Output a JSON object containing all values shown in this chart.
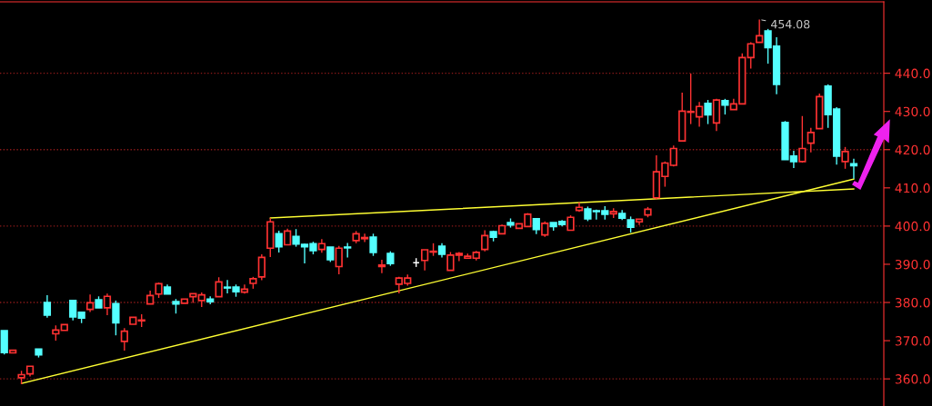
{
  "chart_data": {
    "type": "candlestick",
    "categories": [
      null,
      null,
      null,
      null,
      null,
      null,
      null,
      null,
      null,
      null,
      null,
      null,
      null,
      null,
      null,
      null,
      null,
      null,
      null,
      null,
      null,
      null,
      null,
      null,
      null,
      null,
      null,
      null,
      null,
      null,
      null,
      null,
      null,
      null,
      null,
      null,
      null,
      null,
      null,
      null,
      null,
      null,
      null,
      null,
      null,
      null,
      null,
      null,
      null,
      null,
      null,
      null,
      null,
      null,
      null,
      null,
      null,
      null,
      null,
      null,
      null,
      null,
      null,
      null,
      null,
      null,
      null,
      null,
      null,
      null,
      null,
      null,
      null,
      null,
      null,
      null,
      null,
      null,
      null,
      null,
      null,
      null,
      null,
      null,
      null,
      null,
      null,
      null,
      null,
      null,
      null,
      null,
      null,
      null,
      null,
      null,
      null,
      null,
      null,
      null,
      null,
      null,
      null
    ],
    "ohlc": [
      [
        372.6,
        372.6,
        366.4,
        366.9
      ],
      [
        366.8,
        367.5,
        366.8,
        367.5
      ],
      [
        360.3,
        362.1,
        358.6,
        361.1
      ],
      [
        361.3,
        363.3,
        360.6,
        363.3
      ],
      [
        367.8,
        367.8,
        365.6,
        366.3
      ],
      [
        380.0,
        381.9,
        376.0,
        376.7
      ],
      [
        371.8,
        374.0,
        370.0,
        372.8
      ],
      [
        372.7,
        374.2,
        372.7,
        374.2
      ],
      [
        380.5,
        380.5,
        375.3,
        376.2
      ],
      [
        377.4,
        377.4,
        374.6,
        375.9
      ],
      [
        378.2,
        382.1,
        377.5,
        379.9
      ],
      [
        380.7,
        381.6,
        378.6,
        378.6
      ],
      [
        378.6,
        382.3,
        376.7,
        381.6
      ],
      [
        379.7,
        380.5,
        371.4,
        374.7
      ],
      [
        369.8,
        373.3,
        367.4,
        372.5
      ],
      [
        374.3,
        376.1,
        374.3,
        376.1
      ],
      [
        375.2,
        376.9,
        373.6,
        375.4
      ],
      [
        379.6,
        383.1,
        379.6,
        381.8
      ],
      [
        382.2,
        385.2,
        381.2,
        384.9
      ],
      [
        384.0,
        384.7,
        382.2,
        382.2
      ],
      [
        380.2,
        380.9,
        377.1,
        379.6
      ],
      [
        379.8,
        380.9,
        379.8,
        380.9
      ],
      [
        381.5,
        382.3,
        379.9,
        382.3
      ],
      [
        380.5,
        382.6,
        378.8,
        382.0
      ],
      [
        380.9,
        381.6,
        379.5,
        380.2
      ],
      [
        381.5,
        386.6,
        381.5,
        385.4
      ],
      [
        384.0,
        385.9,
        382.4,
        383.8
      ],
      [
        384.0,
        384.7,
        381.5,
        382.8
      ],
      [
        382.7,
        384.7,
        382.3,
        383.5
      ],
      [
        385.0,
        386.7,
        383.6,
        386.2
      ],
      [
        386.7,
        392.6,
        385.8,
        391.8
      ],
      [
        394.2,
        402.1,
        391.9,
        401.1
      ],
      [
        398.0,
        398.8,
        393.1,
        394.6
      ],
      [
        395.1,
        399.3,
        395.1,
        398.7
      ],
      [
        397.3,
        399.2,
        394.6,
        395.3
      ],
      [
        395.2,
        395.4,
        390.2,
        394.6
      ],
      [
        395.4,
        395.9,
        392.6,
        393.6
      ],
      [
        393.9,
        396.6,
        393.0,
        395.4
      ],
      [
        394.5,
        394.5,
        390.6,
        391.2
      ],
      [
        389.4,
        394.8,
        387.4,
        394.2
      ],
      [
        394.5,
        395.6,
        391.8,
        394.3
      ],
      [
        396.2,
        398.7,
        395.5,
        398.0
      ],
      [
        396.7,
        398.0,
        395.8,
        397.0
      ],
      [
        397.1,
        398.0,
        392.2,
        393.1
      ],
      [
        389.4,
        391.2,
        387.7,
        389.8
      ],
      [
        392.8,
        393.4,
        389.6,
        390.2
      ],
      [
        384.8,
        386.7,
        382.4,
        386.4
      ],
      [
        385.0,
        387.3,
        384.4,
        386.4
      ],
      [
        390.4,
        391.6,
        389.3,
        390.4
      ],
      [
        391.0,
        393.8,
        388.4,
        393.8
      ],
      [
        393.2,
        395.5,
        392.2,
        393.4
      ],
      [
        394.7,
        395.5,
        391.8,
        392.6
      ],
      [
        388.4,
        393.2,
        388.4,
        392.4
      ],
      [
        392.4,
        393.2,
        390.8,
        392.8
      ],
      [
        391.6,
        392.8,
        391.6,
        392.1
      ],
      [
        391.6,
        393.5,
        391.0,
        393.1
      ],
      [
        393.9,
        398.9,
        393.4,
        397.5
      ],
      [
        398.5,
        398.8,
        396.0,
        397.1
      ],
      [
        398.0,
        400.4,
        398.0,
        400.1
      ],
      [
        400.9,
        402.0,
        399.6,
        400.3
      ],
      [
        399.4,
        400.6,
        399.4,
        400.6
      ],
      [
        399.9,
        403.4,
        399.9,
        403.1
      ],
      [
        401.9,
        401.9,
        397.9,
        399.1
      ],
      [
        397.7,
        401.2,
        397.2,
        400.7
      ],
      [
        400.9,
        400.9,
        398.8,
        399.9
      ],
      [
        401.2,
        401.6,
        399.9,
        400.4
      ],
      [
        398.9,
        402.8,
        398.9,
        402.3
      ],
      [
        404.1,
        406.2,
        403.7,
        404.9
      ],
      [
        404.5,
        405.1,
        401.3,
        401.9
      ],
      [
        404.0,
        404.3,
        401.7,
        403.8
      ],
      [
        404.0,
        405.2,
        401.7,
        403.1
      ],
      [
        403.2,
        404.7,
        402.1,
        403.8
      ],
      [
        403.3,
        404.2,
        401.6,
        402.1
      ],
      [
        401.6,
        402.5,
        398.3,
        399.7
      ],
      [
        401.1,
        401.8,
        400.3,
        401.8
      ],
      [
        402.9,
        405.0,
        402.3,
        404.4
      ],
      [
        407.4,
        418.5,
        407.0,
        414.2
      ],
      [
        413.0,
        416.9,
        410.3,
        416.5
      ],
      [
        415.9,
        421.1,
        415.6,
        420.3
      ],
      [
        422.3,
        434.9,
        422.1,
        430.1
      ],
      [
        429.8,
        439.9,
        426.7,
        430.0
      ],
      [
        428.6,
        432.5,
        426.0,
        431.3
      ],
      [
        432.1,
        433.0,
        426.7,
        429.1
      ],
      [
        427.0,
        433.3,
        424.9,
        433.0
      ],
      [
        432.8,
        433.3,
        429.2,
        431.7
      ],
      [
        430.5,
        433.3,
        430.5,
        432.0
      ],
      [
        432.0,
        445.2,
        432.0,
        444.1
      ],
      [
        444.1,
        448.1,
        441.2,
        447.7
      ],
      [
        448.1,
        454.08,
        448.1,
        449.8
      ],
      [
        451.1,
        451.6,
        442.5,
        446.7
      ],
      [
        447.1,
        449.4,
        434.5,
        437.1
      ],
      [
        427.1,
        427.5,
        417.4,
        417.4
      ],
      [
        418.3,
        419.7,
        415.2,
        416.9
      ],
      [
        416.9,
        428.8,
        416.6,
        420.3
      ],
      [
        421.7,
        425.7,
        419.3,
        424.5
      ],
      [
        425.5,
        434.7,
        425.5,
        433.9
      ],
      [
        436.6,
        437.1,
        425.7,
        429.2
      ],
      [
        430.6,
        431.1,
        416.1,
        418.3
      ],
      [
        416.9,
        420.7,
        415.0,
        419.5
      ],
      [
        416.3,
        417.6,
        412.4,
        415.8
      ],
      null,
      null,
      null
    ],
    "colors": [
      "#54ffff",
      "#ff3232",
      "#ff3232",
      "#ff3232",
      "#54ffff",
      "#54ffff",
      "#ff3232",
      "#ff3232",
      "#54ffff",
      "#54ffff",
      "#ff3232",
      "#54ffff",
      "#ff3232",
      "#54ffff",
      "#ff3232",
      "#ff3232",
      "#ff3232",
      "#ff3232",
      "#ff3232",
      "#54ffff",
      "#54ffff",
      "#ff3232",
      "#ff3232",
      "#ff3232",
      "#54ffff",
      "#ff3232",
      "#54ffff",
      "#54ffff",
      "#ff3232",
      "#ff3232",
      "#ff3232",
      "#ff3232",
      "#54ffff",
      "#ff3232",
      "#54ffff",
      "#54ffff",
      "#54ffff",
      "#ff3232",
      "#54ffff",
      "#ff3232",
      "#54ffff",
      "#ff3232",
      "#ff3232",
      "#54ffff",
      "#ff3232",
      "#54ffff",
      "#ff3232",
      "#ff3232",
      "#ffffff",
      "#ff3232",
      "#ff3232",
      "#54ffff",
      "#ff3232",
      "#ff3232",
      "#ff3232",
      "#ff3232",
      "#ff3232",
      "#54ffff",
      "#ff3232",
      "#54ffff",
      "#ff3232",
      "#ff3232",
      "#54ffff",
      "#ff3232",
      "#54ffff",
      "#54ffff",
      "#ff3232",
      "#ff3232",
      "#54ffff",
      "#54ffff",
      "#54ffff",
      "#ff3232",
      "#54ffff",
      "#54ffff",
      "#ff3232",
      "#ff3232",
      "#ff3232",
      "#ff3232",
      "#ff3232",
      "#ff3232",
      "#ff3232",
      "#ff3232",
      "#54ffff",
      "#ff3232",
      "#54ffff",
      "#ff3232",
      "#ff3232",
      "#ff3232",
      "#ff3232",
      "#54ffff",
      "#54ffff",
      "#54ffff",
      "#54ffff",
      "#ff3232",
      "#ff3232",
      "#ff3232",
      "#54ffff",
      "#54ffff",
      "#ff3232",
      "#54ffff",
      null,
      null,
      null
    ],
    "series": [
      {
        "type": "line",
        "color": "#ffff33",
        "values": [
          null,
          null,
          358.8,
          null,
          null,
          null,
          null,
          null,
          null,
          null,
          null,
          null,
          null,
          null,
          null,
          null,
          null,
          null,
          null,
          null,
          null,
          null,
          null,
          null,
          null,
          null,
          null,
          null,
          null,
          null,
          null,
          null,
          null,
          null,
          null,
          null,
          null,
          null,
          null,
          null,
          null,
          null,
          null,
          null,
          null,
          null,
          null,
          null,
          null,
          null,
          null,
          null,
          null,
          null,
          null,
          null,
          null,
          null,
          null,
          null,
          null,
          null,
          null,
          null,
          null,
          null,
          null,
          null,
          null,
          null,
          null,
          null,
          null,
          null,
          null,
          null,
          null,
          null,
          null,
          null,
          null,
          null,
          null,
          null,
          null,
          null,
          null,
          null,
          null,
          null,
          null,
          null,
          null,
          null,
          null,
          null,
          null,
          null,
          null,
          412.3,
          null,
          null,
          null
        ]
      },
      {
        "type": "line",
        "color": "#ffff33",
        "values": [
          null,
          null,
          null,
          null,
          null,
          null,
          null,
          null,
          null,
          null,
          null,
          null,
          null,
          null,
          null,
          null,
          null,
          null,
          null,
          null,
          null,
          null,
          null,
          null,
          null,
          null,
          null,
          null,
          null,
          null,
          null,
          402.1,
          null,
          null,
          null,
          null,
          null,
          null,
          null,
          null,
          null,
          null,
          null,
          null,
          null,
          null,
          null,
          null,
          null,
          null,
          null,
          null,
          null,
          null,
          null,
          null,
          null,
          null,
          null,
          null,
          null,
          null,
          null,
          null,
          null,
          null,
          null,
          null,
          null,
          null,
          null,
          null,
          null,
          null,
          null,
          null,
          null,
          null,
          null,
          null,
          null,
          null,
          null,
          null,
          null,
          null,
          null,
          null,
          null,
          null,
          null,
          null,
          null,
          null,
          null,
          null,
          null,
          null,
          null,
          409.7,
          null,
          null,
          null
        ]
      }
    ],
    "ylim": [
      352.9,
      458.7
    ],
    "yticks": [
      {
        "value": 360,
        "label": "360.0"
      },
      {
        "value": 370,
        "label": "370.0"
      },
      {
        "value": 380,
        "label": "380.0"
      },
      {
        "value": 390,
        "label": "390.0"
      },
      {
        "value": 400,
        "label": "400.0"
      },
      {
        "value": 410,
        "label": "410.0"
      },
      {
        "value": 420,
        "label": "420.0"
      },
      {
        "value": 430,
        "label": "430.0"
      },
      {
        "value": 440,
        "label": "440.0"
      }
    ],
    "ref_lines": [
      {
        "axis": "y",
        "value": 360,
        "color": "#8b1a1a",
        "line_style": "dotted"
      },
      {
        "axis": "y",
        "value": 380,
        "color": "#8b1a1a",
        "line_style": "dotted"
      },
      {
        "axis": "y",
        "value": 400,
        "color": "#8b1a1a",
        "line_style": "dotted"
      },
      {
        "axis": "y",
        "value": 420,
        "color": "#8b1a1a",
        "line_style": "dotted"
      },
      {
        "axis": "y",
        "value": 440,
        "color": "#8b1a1a",
        "line_style": "dotted"
      }
    ],
    "annotations": [
      "454.08"
    ],
    "tick_labels": "y"
  }
}
